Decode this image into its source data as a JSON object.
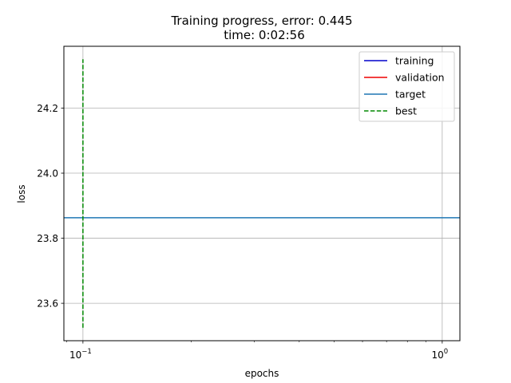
{
  "chart_data": {
    "type": "line",
    "title": "Training progress, error: 0.445",
    "subtitle": "time: 0:02:56",
    "xlabel": "epochs",
    "ylabel": "loss",
    "xscale": "log",
    "xlim": [
      0.0885,
      1.12
    ],
    "ylim": [
      23.485,
      24.39
    ],
    "xticks": [
      {
        "value": 0.1,
        "base": "10",
        "exp": "−1"
      },
      {
        "value": 1.0,
        "base": "10",
        "exp": "0"
      }
    ],
    "yticks": [
      {
        "value": 23.6,
        "label": "23.6"
      },
      {
        "value": 23.8,
        "label": "23.8"
      },
      {
        "value": 24.0,
        "label": "24.0"
      },
      {
        "value": 24.2,
        "label": "24.2"
      }
    ],
    "grid": true,
    "legend_position": "top-right",
    "series": [
      {
        "name": "training",
        "color": "#0000cc",
        "dash": false,
        "x": [],
        "y": []
      },
      {
        "name": "validation",
        "color": "#ee0000",
        "dash": false,
        "x": [],
        "y": []
      },
      {
        "name": "target",
        "color": "#1f77b4",
        "dash": false,
        "kind": "hline",
        "y": 23.863
      },
      {
        "name": "best",
        "color": "#008800",
        "dash": true,
        "kind": "vline",
        "x": 0.1,
        "y_range": [
          23.525,
          24.35
        ]
      }
    ]
  }
}
